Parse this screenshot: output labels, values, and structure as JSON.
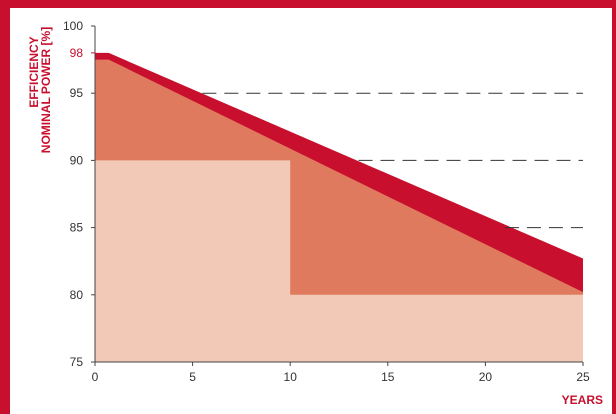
{
  "chart_data": {
    "type": "area",
    "ylabel_line1": "EFFICIENCY",
    "ylabel_line2": "NOMINAL POWER [%]",
    "xlabel": "YEARS",
    "xlim": [
      0,
      25
    ],
    "ylim": [
      75,
      100
    ],
    "x_ticks": [
      0,
      5,
      10,
      15,
      20,
      25
    ],
    "y_ticks": [
      75,
      80,
      85,
      90,
      95,
      100
    ],
    "highlight_tick": 98,
    "grid": "dashed horizontal at 85, 90, 95 (right part)",
    "series": [
      {
        "points": [
          [
            0,
            90
          ],
          [
            10,
            90
          ],
          [
            10,
            80
          ],
          [
            25,
            80
          ]
        ],
        "color": "#f2c9b7"
      },
      {
        "points": [
          [
            0,
            97.5
          ],
          [
            0.7,
            97.5
          ],
          [
            25,
            80.2
          ]
        ],
        "color": "#e07a5f"
      },
      {
        "points": [
          [
            0,
            98
          ],
          [
            0.7,
            98
          ],
          [
            25,
            82.7
          ]
        ],
        "color": "#c8102e"
      }
    ]
  },
  "colors": {
    "accent": "#c8102e",
    "light_band": "#f2c9b7",
    "mid_band": "#e07a5f"
  }
}
